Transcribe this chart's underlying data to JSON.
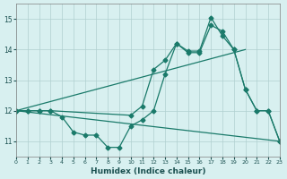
{
  "xlabel": "Humidex (Indice chaleur)",
  "ylabel": "",
  "bg_color": "#d8f0f0",
  "grid_color": "#b0d0d0",
  "line_color": "#1a7a6a",
  "xlim": [
    0,
    23
  ],
  "ylim": [
    10.5,
    15.5
  ],
  "yticks": [
    11,
    12,
    13,
    14,
    15
  ],
  "xticks": [
    0,
    1,
    2,
    3,
    4,
    5,
    6,
    7,
    8,
    9,
    10,
    11,
    12,
    13,
    14,
    15,
    16,
    17,
    18,
    19,
    20,
    21,
    22,
    23
  ],
  "line1_x": [
    0,
    1,
    2,
    3,
    4,
    5,
    6,
    7,
    8,
    9,
    10,
    11,
    12,
    13,
    14,
    15,
    16,
    17,
    18,
    19,
    20,
    21,
    22,
    23
  ],
  "line1_y": [
    12,
    12,
    12,
    12,
    11.8,
    11.3,
    11.2,
    11.2,
    10.8,
    10.8,
    11.5,
    11.7,
    12.0,
    13.2,
    14.2,
    13.9,
    13.9,
    14.8,
    14.6,
    14.0,
    12.7,
    12.0,
    12.0,
    11.0
  ],
  "line2_x": [
    0,
    1,
    2,
    3,
    10,
    11,
    12,
    13,
    14,
    15,
    16,
    17,
    18,
    19,
    20,
    21,
    22,
    23
  ],
  "line2_y": [
    12,
    12,
    12,
    12,
    11.85,
    12.15,
    13.35,
    13.65,
    14.2,
    13.95,
    13.95,
    15.05,
    14.45,
    14.0,
    12.7,
    12.0,
    12.0,
    11.0
  ],
  "line3_x": [
    0,
    23
  ],
  "line3_y": [
    12,
    11.0
  ],
  "line4_x": [
    0,
    20
  ],
  "line4_y": [
    12,
    14.0
  ]
}
